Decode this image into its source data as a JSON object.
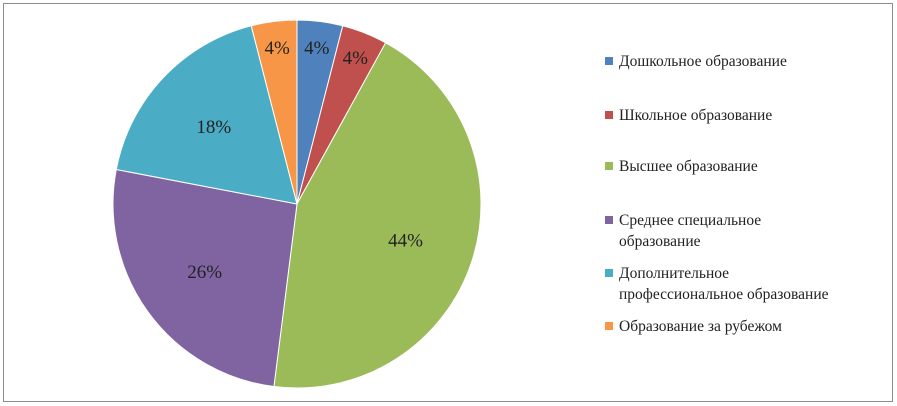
{
  "chart_data": {
    "type": "pie",
    "categories": [
      "Дошкольное образование",
      "Школьное образование",
      "Высшее образование",
      "Среднее специальное образование",
      "Дополнительное профессиональное образование",
      "Образование за рубежом"
    ],
    "values": [
      4,
      4,
      44,
      26,
      18,
      4
    ],
    "labels": [
      "4%",
      "4%",
      "44%",
      "26%",
      "18%",
      "4%"
    ],
    "colors": [
      "#4F81BD",
      "#C0504D",
      "#9BBB59",
      "#8064A2",
      "#4BACC6",
      "#F79646"
    ],
    "legend_placement": "right",
    "start": "top, clockwise"
  },
  "legend": [
    [
      "Дошкольное образование"
    ],
    [
      "Школьное образование"
    ],
    [
      "Высшее образование"
    ],
    [
      "Среднее специальное",
      "образование"
    ],
    [
      "Дополнительное",
      "профессиональное образование"
    ],
    [
      "Образование за рубежом"
    ]
  ]
}
